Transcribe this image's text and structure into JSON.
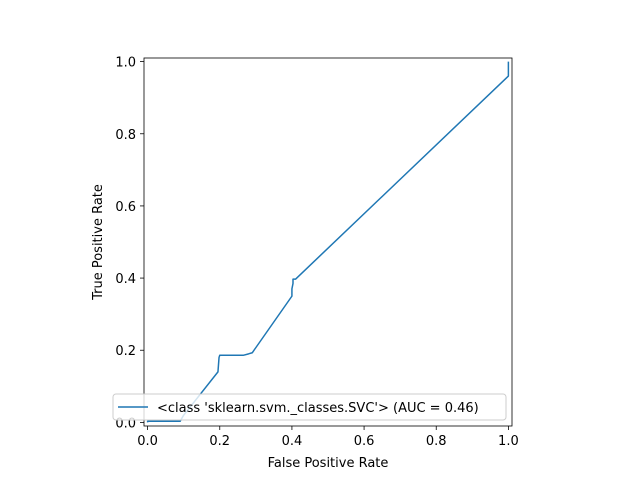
{
  "chart_data": {
    "type": "line",
    "title": "",
    "xlabel": "False Positive Rate",
    "ylabel": "True Positive Rate",
    "xlim": [
      -0.01,
      1.01
    ],
    "ylim": [
      -0.01,
      1.01
    ],
    "xticks": [
      0.0,
      0.2,
      0.4,
      0.6,
      0.8,
      1.0
    ],
    "xtick_labels": [
      "0.0",
      "0.2",
      "0.4",
      "0.6",
      "0.8",
      "1.0"
    ],
    "yticks": [
      0.0,
      0.2,
      0.4,
      0.6,
      0.8,
      1.0
    ],
    "ytick_labels": [
      "0.0",
      "0.2",
      "0.4",
      "0.6",
      "0.8",
      "1.0"
    ],
    "grid": false,
    "legend_position": "lower-right",
    "series": [
      {
        "name": "<class 'sklearn.svm._classes.SVC'> (AUC = 0.46)",
        "color": "#1f77b4",
        "x": [
          0.0,
          0.0,
          0.09,
          0.1,
          0.195,
          0.198,
          0.2,
          0.265,
          0.28,
          0.29,
          0.4,
          0.4,
          0.403,
          0.403,
          0.41,
          1.0,
          1.0
        ],
        "y": [
          0.0,
          0.003,
          0.003,
          0.02,
          0.14,
          0.18,
          0.186,
          0.186,
          0.19,
          0.193,
          0.35,
          0.37,
          0.385,
          0.397,
          0.397,
          0.96,
          1.0
        ]
      }
    ]
  }
}
